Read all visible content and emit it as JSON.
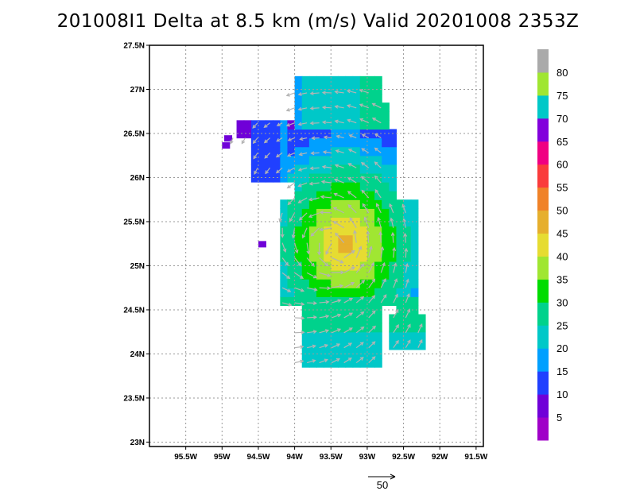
{
  "title": "201008I1 Delta at 8.5 km (m/s) Valid 20201008 2353Z",
  "chart_data": {
    "type": "map",
    "x_range": [
      -96.0,
      -91.4
    ],
    "y_range": [
      22.95,
      27.5
    ],
    "x_ticks": [
      {
        "value": -95.5,
        "label": "95.5W"
      },
      {
        "value": -95.0,
        "label": "95W"
      },
      {
        "value": -94.5,
        "label": "94.5W"
      },
      {
        "value": -94.0,
        "label": "94W"
      },
      {
        "value": -93.5,
        "label": "93.5W"
      },
      {
        "value": -93.0,
        "label": "93W"
      },
      {
        "value": -92.5,
        "label": "92.5W"
      },
      {
        "value": -92.0,
        "label": "92W"
      },
      {
        "value": -91.5,
        "label": "91.5W"
      }
    ],
    "y_ticks": [
      {
        "value": 27.5,
        "label": "27.5N"
      },
      {
        "value": 27.0,
        "label": "27N"
      },
      {
        "value": 26.5,
        "label": "26.5N"
      },
      {
        "value": 26.0,
        "label": "26N"
      },
      {
        "value": 25.5,
        "label": "25.5N"
      },
      {
        "value": 25.0,
        "label": "25N"
      },
      {
        "value": 24.5,
        "label": "24.5N"
      },
      {
        "value": 24.0,
        "label": "24N"
      },
      {
        "value": 23.5,
        "label": "23.5N"
      },
      {
        "value": 23.0,
        "label": "23N"
      }
    ],
    "grid": true,
    "storm_center": {
      "lon": -93.35,
      "lat": 25.2
    },
    "colorbar": {
      "labels": [
        "5",
        "10",
        "15",
        "20",
        "25",
        "30",
        "35",
        "40",
        "45",
        "50",
        "55",
        "60",
        "65",
        "70",
        "75",
        "80"
      ],
      "colors": [
        "#a000c8",
        "#7000d8",
        "#2040ff",
        "#00a0ff",
        "#00c8c8",
        "#00d28c",
        "#00dc00",
        "#a0e632",
        "#e6dc32",
        "#e6af2d",
        "#f08228",
        "#fa3c3c",
        "#f00082",
        "#8200dc",
        "#00c8c8",
        "#a0e632",
        "#aaaaaa"
      ]
    },
    "reference_vector": {
      "label": "50",
      "magnitude": 50
    }
  }
}
